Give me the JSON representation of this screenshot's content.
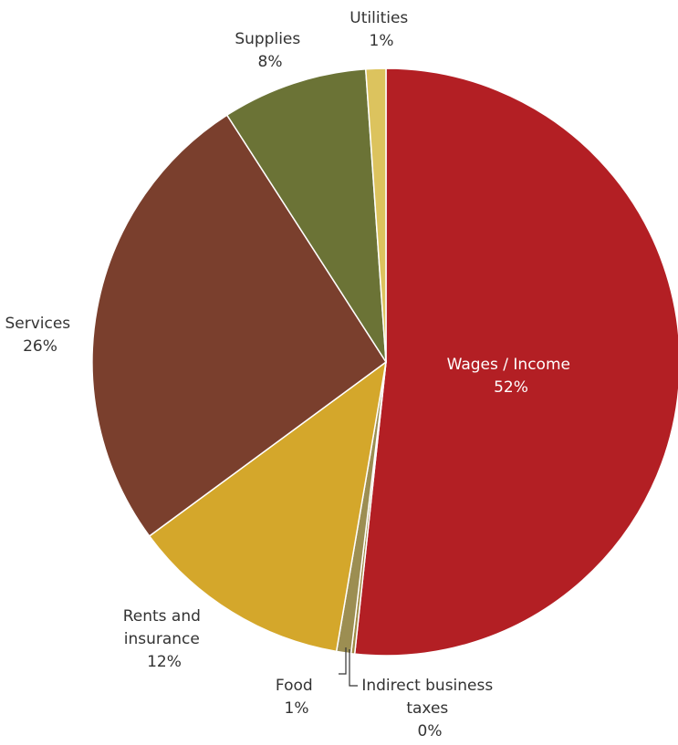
{
  "chart_data": {
    "type": "pie",
    "title": "",
    "start_angle_deg": 0,
    "direction": "clockwise",
    "slices": [
      {
        "label": "Wages / Income",
        "pct_label": "52%",
        "value": 51.7,
        "color": "#b31f24",
        "label_color": "#ffffff"
      },
      {
        "label": "Indirect business taxes",
        "label_lines": [
          "Indirect business",
          "taxes"
        ],
        "pct_label": "0%",
        "value": 0.2,
        "color": "#a08a45",
        "label_color": "#333333"
      },
      {
        "label": "Food",
        "pct_label": "1%",
        "value": 0.8,
        "color": "#9c8e52",
        "label_color": "#333333"
      },
      {
        "label": "Rents and insurance",
        "label_lines": [
          "Rents and",
          "insurance"
        ],
        "pct_label": "12%",
        "value": 12.2,
        "color": "#d4a72b",
        "label_color": "#333333"
      },
      {
        "label": "Services",
        "pct_label": "26%",
        "value": 26.0,
        "color": "#7a3f2d",
        "label_color": "#333333"
      },
      {
        "label": "Supplies",
        "pct_label": "8%",
        "value": 8.0,
        "color": "#6b7336",
        "label_color": "#333333"
      },
      {
        "label": "Utilities",
        "pct_label": "1%",
        "value": 1.1,
        "color": "#dcc35e",
        "label_color": "#333333"
      }
    ]
  }
}
